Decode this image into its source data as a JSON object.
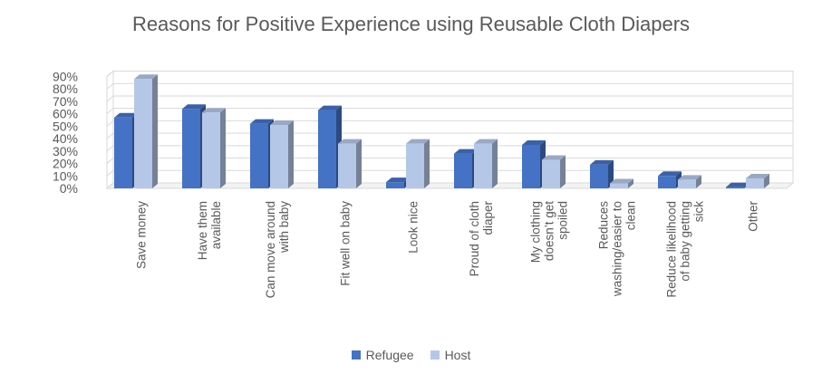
{
  "chart_data": {
    "type": "bar",
    "title": "Reasons for Positive Experience using Reusable Cloth Diapers",
    "categories": [
      [
        "Save money"
      ],
      [
        "Have them",
        "available"
      ],
      [
        "Can move around",
        "with baby"
      ],
      [
        "Fit well on baby"
      ],
      [
        "Look nice"
      ],
      [
        "Proud of cloth",
        "diaper"
      ],
      [
        "My clothing",
        "doesn’t get",
        "spoiled"
      ],
      [
        "Reduces",
        "washing/easier to",
        "clean"
      ],
      [
        "Reduce likelihood",
        "of baby getting",
        "sick"
      ],
      [
        "Other"
      ]
    ],
    "series": [
      {
        "name": "Refugee",
        "color": "#4472C4",
        "values": [
          57,
          64,
          52,
          63,
          5,
          28,
          35,
          19,
          10,
          1
        ]
      },
      {
        "name": "Host",
        "color": "#B4C7E7",
        "values": [
          88,
          61,
          51,
          36,
          36,
          36,
          23,
          4,
          7,
          8
        ]
      }
    ],
    "yticks": [
      "0%",
      "10%",
      "20%",
      "30%",
      "40%",
      "50%",
      "60%",
      "70%",
      "80%",
      "90%"
    ],
    "ylim": [
      0,
      90
    ],
    "grid": true,
    "legend": "bottom"
  }
}
